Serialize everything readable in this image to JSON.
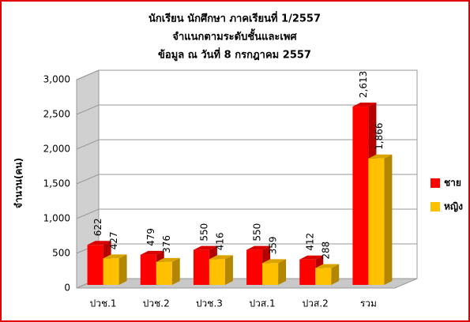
{
  "chart_data": {
    "type": "bar3d",
    "title": [
      "นักเรียน นักศึกษา ภาคเรียนที่ 1/2557",
      "จำแนกตามระดับชั้นและเพศ",
      "ข้อมูล ณ วันที่ 8 กรกฎาคม 2557"
    ],
    "y_label": "จำนวน(คน)",
    "categories": [
      "ปวช.1",
      "ปวช.2",
      "ปวช.3",
      "ปวส.1",
      "ปวส.2",
      "รวม"
    ],
    "series": [
      {
        "name": "ชาย",
        "color": "#ff0000",
        "values": [
          622,
          479,
          550,
          550,
          412,
          2613
        ],
        "value_labels": [
          "622",
          "479",
          "550",
          "550",
          "412",
          "2,613"
        ]
      },
      {
        "name": "หญิง",
        "color": "#ffc000",
        "values": [
          427,
          376,
          416,
          359,
          288,
          1866
        ],
        "value_labels": [
          "427",
          "376",
          "416",
          "359",
          "288",
          "1,866"
        ]
      }
    ],
    "ylim": [
      0,
      3000
    ],
    "yticks": [
      0,
      500,
      {
        "value": 1000,
        "label": "1,000"
      },
      {
        "value": 1500,
        "label": "1,500"
      },
      {
        "value": 2000,
        "label": "2,000"
      },
      {
        "value": 2500,
        "label": "2,500"
      },
      {
        "value": 3000,
        "label": "3,000"
      }
    ],
    "grid": true,
    "legend": "right"
  }
}
